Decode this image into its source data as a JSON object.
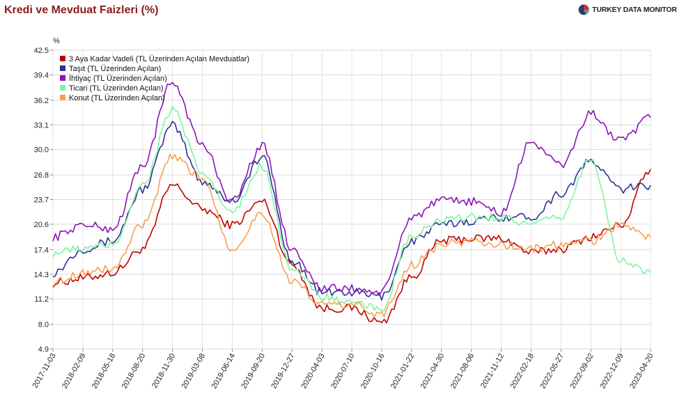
{
  "header": {
    "title": "Kredi ve Mevduat Faizleri (%)",
    "brand": "TURKEY DATA MONITOR",
    "brand_icon": "pie-logo-icon"
  },
  "chart_data": {
    "type": "line",
    "title": "Kredi ve Mevduat Faizleri (%)",
    "xlabel": "",
    "ylabel": "%",
    "ylim": [
      4.9,
      42.5
    ],
    "yticks": [
      "4.9",
      "8.0",
      "11.2",
      "14.3",
      "17.4",
      "20.6",
      "23.7",
      "26.8",
      "30.0",
      "33.1",
      "36.2",
      "39.4",
      "42.5"
    ],
    "x": [
      "2017-11-03",
      "2018-02-09",
      "2018-05-18",
      "2018-08-20",
      "2018-11-30",
      "2019-03-08",
      "2019-06-14",
      "2019-09-20",
      "2019-12-27",
      "2020-04-03",
      "2020-07-10",
      "2020-10-16",
      "2021-01-22",
      "2021-04-30",
      "2021-08-06",
      "2021-11-12",
      "2022-02-18",
      "2022-05-27",
      "2022-09-02",
      "2022-12-09",
      "2023-04-20"
    ],
    "grid": true,
    "legend_position": "top-left",
    "series": [
      {
        "name": "3 Aya Kadar Vadeli (TL Üzerinden Açılan Mevduatlar)",
        "color": "#c00000",
        "values": [
          13.2,
          13.8,
          14.5,
          17.5,
          25.5,
          22.5,
          20.5,
          23.5,
          15.5,
          10.0,
          10.0,
          8.2,
          14.0,
          18.5,
          18.8,
          18.8,
          17.0,
          17.5,
          19.0,
          20.5,
          27.5
        ]
      },
      {
        "name": "Taşıt (TL Üzerinden Açılan)",
        "color": "#2e3192",
        "values": [
          14.5,
          17.5,
          18.5,
          25.0,
          33.0,
          26.0,
          23.5,
          29.0,
          16.0,
          12.0,
          12.0,
          11.5,
          18.5,
          20.5,
          21.0,
          21.5,
          21.5,
          24.5,
          28.5,
          25.0,
          25.5
        ]
      },
      {
        "name": "İhtiyaç (TL Üzerinden Açılan)",
        "color": "#8b13b8",
        "values": [
          19.0,
          20.5,
          20.0,
          28.0,
          38.5,
          30.5,
          23.5,
          30.5,
          17.5,
          12.5,
          12.5,
          12.0,
          21.5,
          23.5,
          23.5,
          22.0,
          31.0,
          28.0,
          34.5,
          31.0,
          34.0
        ]
      },
      {
        "name": "Ticari (TL Üzerinden Açılan)",
        "color": "#7ef5a0",
        "values": [
          17.0,
          17.5,
          18.0,
          25.5,
          35.0,
          27.0,
          22.0,
          28.0,
          15.0,
          11.5,
          10.5,
          10.0,
          19.0,
          21.0,
          21.5,
          21.5,
          20.5,
          21.5,
          29.0,
          16.0,
          14.5
        ]
      },
      {
        "name": "Konut (TL Üzerinden Açılan)",
        "color": "#f5a050",
        "values": [
          13.3,
          14.5,
          15.0,
          20.5,
          29.0,
          26.5,
          17.5,
          22.0,
          13.3,
          10.5,
          10.5,
          9.2,
          15.5,
          18.0,
          18.5,
          18.0,
          17.5,
          18.0,
          18.5,
          20.5,
          19.0
        ]
      }
    ]
  }
}
